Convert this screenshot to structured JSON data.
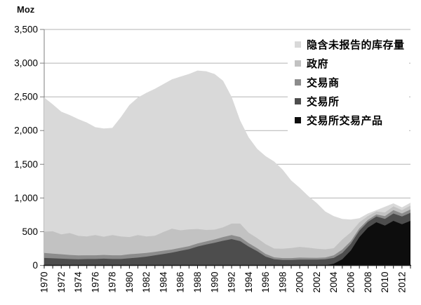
{
  "unit_label": "Moz",
  "chart_data": {
    "type": "area",
    "stacked": true,
    "title": "",
    "xlabel": "",
    "ylabel": "Moz",
    "grid": true,
    "ylim": [
      0,
      3500
    ],
    "y_tick_step": 500,
    "y_tick_labels": [
      "0",
      "500",
      "1,000",
      "1,500",
      "2,000",
      "2,500",
      "3,000",
      "3,500"
    ],
    "x": [
      1970,
      1971,
      1972,
      1973,
      1974,
      1975,
      1976,
      1977,
      1978,
      1979,
      1980,
      1981,
      1982,
      1983,
      1984,
      1985,
      1986,
      1987,
      1988,
      1989,
      1990,
      1991,
      1992,
      1993,
      1994,
      1995,
      1996,
      1997,
      1998,
      1999,
      2000,
      2001,
      2002,
      2003,
      2004,
      2005,
      2006,
      2007,
      2008,
      2009,
      2010,
      2011,
      2012,
      2013
    ],
    "x_tick_labels": [
      "1970",
      "1972",
      "1974",
      "1976",
      "1978",
      "1980",
      "1982",
      "1984",
      "1986",
      "1988",
      "1990",
      "1992",
      "1994",
      "1996",
      "1998",
      "2000",
      "2002",
      "2004",
      "2006",
      "2008",
      "2010",
      "2012"
    ],
    "legend_position": "top-right-inside",
    "legend_order_top_to_bottom": [
      "隐含未报告的库存量",
      "政府",
      "交易商",
      "交易所",
      "交易所交易产品"
    ],
    "series": [
      {
        "name": "交易所交易产品",
        "color": "#0d0d0d",
        "values": [
          0,
          0,
          0,
          0,
          0,
          0,
          0,
          0,
          0,
          0,
          0,
          0,
          0,
          0,
          0,
          0,
          0,
          0,
          0,
          0,
          0,
          0,
          0,
          0,
          0,
          0,
          0,
          0,
          0,
          0,
          0,
          0,
          0,
          0,
          25,
          90,
          220,
          420,
          560,
          640,
          590,
          660,
          610,
          660
        ]
      },
      {
        "name": "交易所",
        "color": "#4d4d4d",
        "values": [
          110,
          105,
          100,
          95,
          90,
          95,
          95,
          100,
          95,
          95,
          105,
          115,
          130,
          150,
          170,
          190,
          215,
          240,
          280,
          310,
          335,
          365,
          390,
          360,
          280,
          210,
          130,
          90,
          80,
          80,
          85,
          85,
          85,
          90,
          85,
          95,
          100,
          95,
          85,
          85,
          100,
          110,
          115,
          120
        ]
      },
      {
        "name": "交易商",
        "color": "#8c8c8c",
        "values": [
          75,
          70,
          65,
          60,
          58,
          55,
          55,
          55,
          55,
          55,
          60,
          60,
          55,
          50,
          48,
          45,
          45,
          45,
          45,
          45,
          50,
          55,
          60,
          60,
          50,
          45,
          40,
          30,
          28,
          28,
          30,
          28,
          27,
          28,
          40,
          50,
          40,
          35,
          30,
          30,
          40,
          50,
          45,
          50
        ]
      },
      {
        "name": "政府",
        "color": "#c2c2c2",
        "values": [
          315,
          330,
          295,
          325,
          290,
          280,
          300,
          270,
          300,
          280,
          255,
          275,
          245,
          240,
          277,
          310,
          260,
          250,
          215,
          170,
          145,
          145,
          170,
          200,
          155,
          150,
          145,
          130,
          140,
          150,
          160,
          150,
          135,
          120,
          105,
          150,
          130,
          90,
          55,
          45,
          55,
          55,
          50,
          55
        ]
      },
      {
        "name": "隐含未报告的库存量",
        "color": "#d9d9d9",
        "values": [
          1990,
          1885,
          1820,
          1750,
          1732,
          1690,
          1600,
          1605,
          1590,
          1770,
          1960,
          2040,
          2130,
          2180,
          2195,
          2215,
          2280,
          2305,
          2350,
          2355,
          2310,
          2175,
          1880,
          1530,
          1415,
          1325,
          1305,
          1290,
          1172,
          1002,
          875,
          767,
          678,
          562,
          475,
          305,
          190,
          60,
          40,
          20,
          85,
          45,
          40,
          45
        ]
      }
    ]
  }
}
